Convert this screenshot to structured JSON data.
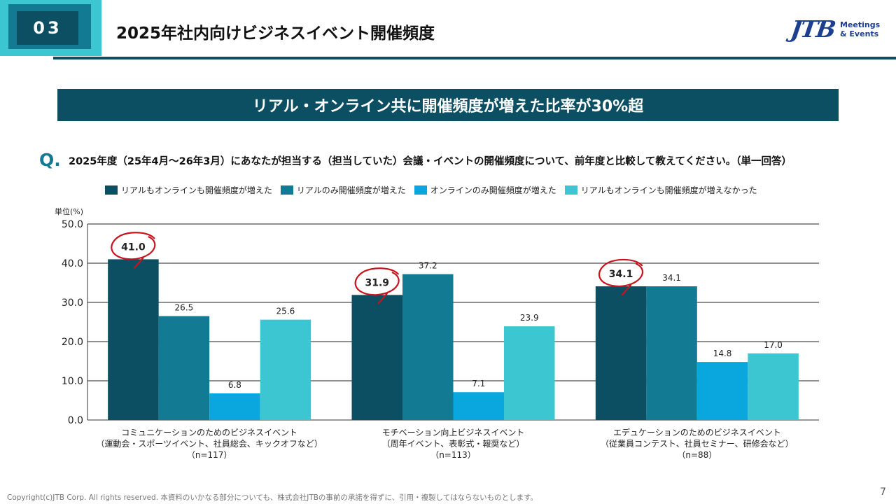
{
  "header": {
    "section_number": "03",
    "title": "2025年社内向けビジネスイベント開催頻度",
    "logo_mark": "JTB",
    "logo_text": "Meetings\n& Events"
  },
  "banner": {
    "text": "リアル・オンライン共に開催頻度が増えた比率が30%超"
  },
  "question": {
    "mark": "Q.",
    "text": "2025年度（25年4月〜26年3月）にあなたが担当する（担当していた）会議・イベントの開催頻度について、前年度と比較して教えてください。（単一回答）"
  },
  "colors": {
    "series": [
      "#0c4f62",
      "#127a93",
      "#0aa7de",
      "#3cc6d2"
    ],
    "highlight_circle": "#c8141e",
    "banner": "#0c4f62"
  },
  "chart_data": {
    "type": "bar",
    "unit_label": "単位(%)",
    "ylim": [
      0,
      50
    ],
    "yticks": [
      "0.0",
      "10.0",
      "20.0",
      "30.0",
      "40.0",
      "50.0"
    ],
    "grid": true,
    "legend_position": "top",
    "categories": [
      [
        "コミュニケーションのためのビジネスイベント",
        "（運動会・スポーツイベント、社員総会、キックオフなど）",
        "（n=117）"
      ],
      [
        "モチベーション向上ビジネスイベント",
        "（周年イベント、表彰式・報奨など）",
        "（n=113）"
      ],
      [
        "エデュケーションのためのビジネスイベント",
        "（従業員コンテスト、社員セミナー、研修会など）",
        "（n=88）"
      ]
    ],
    "series": [
      {
        "name": "リアルもオンラインも開催頻度が増えた",
        "values": [
          41.0,
          31.9,
          34.1
        ],
        "labels": [
          "41.0",
          "31.9",
          "34.1"
        ],
        "highlighted": true
      },
      {
        "name": "リアルのみ開催頻度が増えた",
        "values": [
          26.5,
          37.2,
          34.1
        ],
        "labels": [
          "26.5",
          "37.2",
          "34.1"
        ]
      },
      {
        "name": "オンラインのみ開催頻度が増えた",
        "values": [
          6.8,
          7.1,
          14.8
        ],
        "labels": [
          "6.8",
          "7.1",
          "14.8"
        ]
      },
      {
        "name": "リアルもオンラインも開催頻度が増えなかった",
        "values": [
          25.6,
          23.9,
          17.0
        ],
        "labels": [
          "25.6",
          "23.9",
          "17.0"
        ]
      }
    ]
  },
  "footer": {
    "copyright": "Copyright(c)JTB Corp. All rights reserved.  本資料のいかなる部分についても、株式会社JTBの事前の承諾を得ずに、引用・複製してはならないものとします。",
    "page_number": "7"
  }
}
